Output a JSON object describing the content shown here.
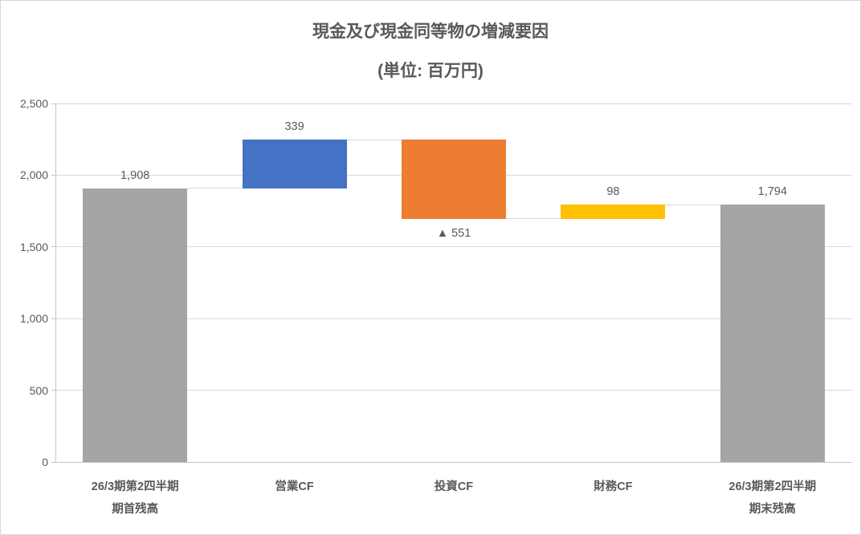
{
  "title": "現金及び現金同等物の増減要因",
  "subtitle": "(単位: 百万円)",
  "colors": {
    "total_bar": "#A5A5A5",
    "increase_bar": "#4472C4",
    "decrease_bar": "#ED7D31",
    "financing_bar": "#FFC000",
    "gridline": "#D9D9D9",
    "axis_line": "#C6C6C6",
    "text": "#595959"
  },
  "chart_data": {
    "type": "bar",
    "subtype": "waterfall",
    "title": "現金及び現金同等物の増減要因",
    "subtitle": "(単位: 百万円)",
    "xlabel": "",
    "ylabel": "",
    "grid": true,
    "legend": false,
    "y_axis": {
      "min": 0,
      "max": 2500,
      "step": 500,
      "tick_labels": [
        "0",
        "500",
        "1,000",
        "1,500",
        "2,000",
        "2,500"
      ]
    },
    "categories": [
      "26/3期第2四半期 期首残高",
      "営業CF",
      "投資CF",
      "財務CF",
      "26/3期第2四半期 期末残高"
    ],
    "bars": [
      {
        "category_lines": [
          "26/3期第2四半期",
          "期首残高"
        ],
        "role": "total",
        "value": 1908,
        "start": 0,
        "end": 1908,
        "label": "1,908",
        "label_position": "above",
        "color": "#A5A5A5"
      },
      {
        "category_lines": [
          "営業CF"
        ],
        "role": "increase",
        "value": 339,
        "start": 1908,
        "end": 2247,
        "label": "339",
        "label_position": "above",
        "color": "#4472C4"
      },
      {
        "category_lines": [
          "投資CF"
        ],
        "role": "decrease",
        "value": -551,
        "start": 2247,
        "end": 1696,
        "label": "▲ 551",
        "label_position": "below",
        "color": "#ED7D31"
      },
      {
        "category_lines": [
          "財務CF"
        ],
        "role": "increase",
        "value": 98,
        "start": 1696,
        "end": 1794,
        "label": "98",
        "label_position": "above",
        "color": "#FFC000"
      },
      {
        "category_lines": [
          "26/3期第2四半期",
          "期末残高"
        ],
        "role": "total",
        "value": 1794,
        "start": 0,
        "end": 1794,
        "label": "1,794",
        "label_position": "above",
        "color": "#A5A5A5"
      }
    ]
  }
}
